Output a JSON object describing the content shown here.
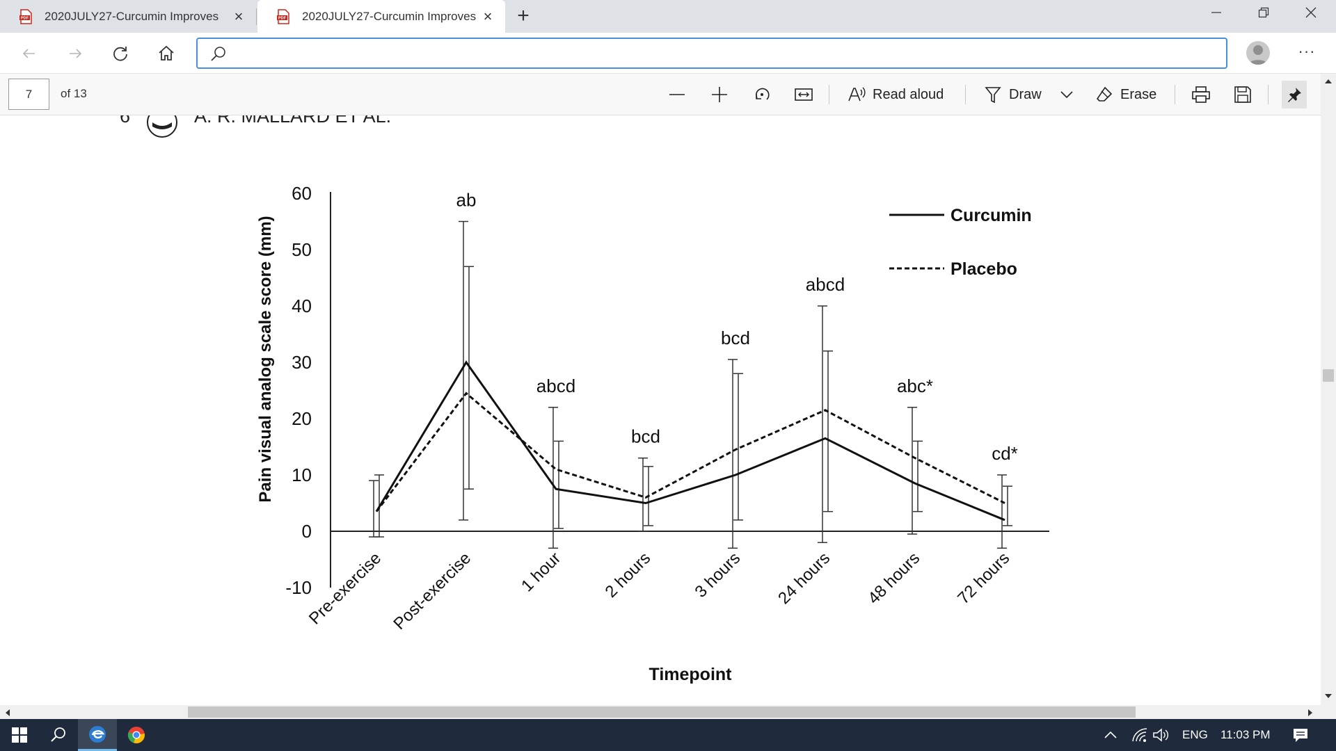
{
  "browser": {
    "tabs": [
      {
        "title": "2020JULY27-Curcumin Improves",
        "favicon": "pdf-icon",
        "close": "×",
        "active": false
      },
      {
        "title": "2020JULY27-Curcumin Improves",
        "favicon": "pdf-icon",
        "close": "×",
        "active": true
      }
    ],
    "new_tab": "+",
    "address": {
      "value": "",
      "placeholder": ""
    },
    "more": "···"
  },
  "pdf_toolbar": {
    "page_number": "7",
    "page_count": "of 13",
    "read_aloud": "Read aloud",
    "draw": "Draw",
    "erase": "Erase"
  },
  "document": {
    "running_head_page": "6",
    "running_head_authors": "A. R. MALLARD ET AL."
  },
  "chart_data": {
    "type": "line",
    "title": "",
    "xlabel": "Timepoint",
    "ylabel": "Pain visual analog scale score (mm)",
    "ylim": [
      -10,
      60
    ],
    "yticks": [
      "60",
      "50",
      "40",
      "30",
      "20",
      "10",
      "0",
      "-10"
    ],
    "categories": [
      "Pre-exercise",
      "Post-exercise",
      "1 hour",
      "2 hours",
      "3 hours",
      "24 hours",
      "48 hours",
      "72 hours"
    ],
    "annotations": [
      "",
      "ab",
      "abcd",
      "bcd",
      "bcd",
      "abcd",
      "abc*",
      "cd*"
    ],
    "legend_position": "top-right",
    "grid": false,
    "series": [
      {
        "name": "Curcumin",
        "style": "solid",
        "values": [
          3.5,
          30,
          7.5,
          5,
          10,
          16.5,
          8.5,
          2
        ],
        "error_low": [
          -1,
          2,
          -3,
          0,
          -3,
          -2,
          -0.5,
          -3
        ],
        "error_high": [
          9,
          55,
          22,
          13,
          30.5,
          40,
          22,
          10
        ]
      },
      {
        "name": "Placebo",
        "style": "dashed",
        "values": [
          3.5,
          24.5,
          11,
          6,
          14.5,
          21.5,
          13,
          5
        ],
        "error_low": [
          -1,
          7.5,
          0.5,
          1,
          2,
          3.5,
          3.5,
          1
        ],
        "error_high": [
          10,
          47,
          16,
          11.5,
          28,
          32,
          16,
          8
        ]
      }
    ]
  },
  "taskbar": {
    "language": "ENG",
    "time": "11:03 PM"
  },
  "colors": {
    "accent": "#4a90d9",
    "tabstrip": "#dee1e6",
    "taskbar": "#1f2a3c"
  }
}
